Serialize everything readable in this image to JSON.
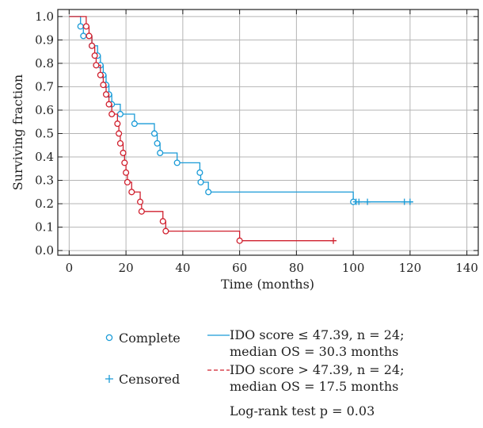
{
  "chart_data": {
    "type": "line",
    "subtype": "kaplan-meier",
    "xlabel": "Time (months)",
    "ylabel": "Surviving fraction",
    "xlim": [
      -4,
      144
    ],
    "ylim": [
      -0.02,
      1.03
    ],
    "xticks": [
      0,
      20,
      40,
      60,
      80,
      100,
      120,
      140
    ],
    "yticks": [
      "0.0",
      "0.1",
      "0.2",
      "0.3",
      "0.4",
      "0.5",
      "0.6",
      "0.7",
      "0.8",
      "0.9",
      "1.0"
    ],
    "grid": true,
    "series": [
      {
        "name": "IDO score ≤ 47.39, n = 24; median OS = 30.3 months",
        "color": "#1a9bd7",
        "dash": "solid",
        "steps": [
          [
            0,
            1.0
          ],
          [
            4,
            0.958
          ],
          [
            5,
            0.917
          ],
          [
            8,
            0.875
          ],
          [
            10,
            0.833
          ],
          [
            11,
            0.792
          ],
          [
            12,
            0.75
          ],
          [
            13,
            0.708
          ],
          [
            14,
            0.667
          ],
          [
            15,
            0.625
          ],
          [
            18,
            0.583
          ],
          [
            23,
            0.542
          ],
          [
            30,
            0.5
          ],
          [
            31,
            0.458
          ],
          [
            32,
            0.417
          ],
          [
            38,
            0.375
          ],
          [
            46,
            0.333
          ],
          [
            46.3,
            0.292
          ],
          [
            49,
            0.25
          ],
          [
            100,
            0.208
          ],
          [
            121,
            0.208
          ]
        ],
        "complete": [
          [
            4,
            0.958
          ],
          [
            5,
            0.917
          ],
          [
            8,
            0.875
          ],
          [
            10,
            0.833
          ],
          [
            11,
            0.792
          ],
          [
            12,
            0.75
          ],
          [
            13,
            0.708
          ],
          [
            14,
            0.667
          ],
          [
            15,
            0.625
          ],
          [
            18,
            0.583
          ],
          [
            23,
            0.542
          ],
          [
            30,
            0.5
          ],
          [
            31,
            0.458
          ],
          [
            32,
            0.417
          ],
          [
            38,
            0.375
          ],
          [
            46,
            0.333
          ],
          [
            46.3,
            0.292
          ],
          [
            49,
            0.25
          ],
          [
            100,
            0.208
          ]
        ],
        "censored": [
          [
            101,
            0.208
          ],
          [
            102,
            0.208
          ],
          [
            105,
            0.208
          ],
          [
            118,
            0.208
          ],
          [
            120,
            0.208
          ]
        ]
      },
      {
        "name": "IDO score > 47.39, n = 24; median OS = 17.5 months",
        "color": "#d0202e",
        "dash": "dashed",
        "steps": [
          [
            0,
            1.0
          ],
          [
            6,
            0.958
          ],
          [
            7,
            0.917
          ],
          [
            8,
            0.875
          ],
          [
            9,
            0.833
          ],
          [
            9.5,
            0.792
          ],
          [
            11,
            0.75
          ],
          [
            12,
            0.708
          ],
          [
            13,
            0.667
          ],
          [
            14,
            0.625
          ],
          [
            15,
            0.583
          ],
          [
            17,
            0.542
          ],
          [
            17.5,
            0.5
          ],
          [
            18,
            0.458
          ],
          [
            19,
            0.417
          ],
          [
            19.5,
            0.375
          ],
          [
            20,
            0.333
          ],
          [
            20.5,
            0.292
          ],
          [
            22,
            0.25
          ],
          [
            25,
            0.208
          ],
          [
            25.5,
            0.167
          ],
          [
            33,
            0.125
          ],
          [
            34,
            0.083
          ],
          [
            60,
            0.042
          ],
          [
            93,
            0.042
          ]
        ],
        "complete": [
          [
            6,
            0.958
          ],
          [
            7,
            0.917
          ],
          [
            8,
            0.875
          ],
          [
            9,
            0.833
          ],
          [
            9.5,
            0.792
          ],
          [
            11,
            0.75
          ],
          [
            12,
            0.708
          ],
          [
            13,
            0.667
          ],
          [
            14,
            0.625
          ],
          [
            15,
            0.583
          ],
          [
            17,
            0.542
          ],
          [
            17.5,
            0.5
          ],
          [
            18,
            0.458
          ],
          [
            19,
            0.417
          ],
          [
            19.5,
            0.375
          ],
          [
            20,
            0.333
          ],
          [
            20.5,
            0.292
          ],
          [
            22,
            0.25
          ],
          [
            25,
            0.208
          ],
          [
            25.5,
            0.167
          ],
          [
            33,
            0.125
          ],
          [
            34,
            0.083
          ],
          [
            60,
            0.042
          ]
        ],
        "censored": [
          [
            93,
            0.042
          ]
        ]
      }
    ],
    "legend": {
      "placement": "bottom",
      "complete_label": "Complete",
      "censored_label": "Censored",
      "series_lines": [
        [
          "IDO score ≤ 47.39, n = 24;",
          "median OS = 30.3 months"
        ],
        [
          "IDO score > 47.39, n = 24;",
          "median OS = 17.5 months"
        ]
      ]
    },
    "annotation": "Log-rank test p = 0.03"
  }
}
